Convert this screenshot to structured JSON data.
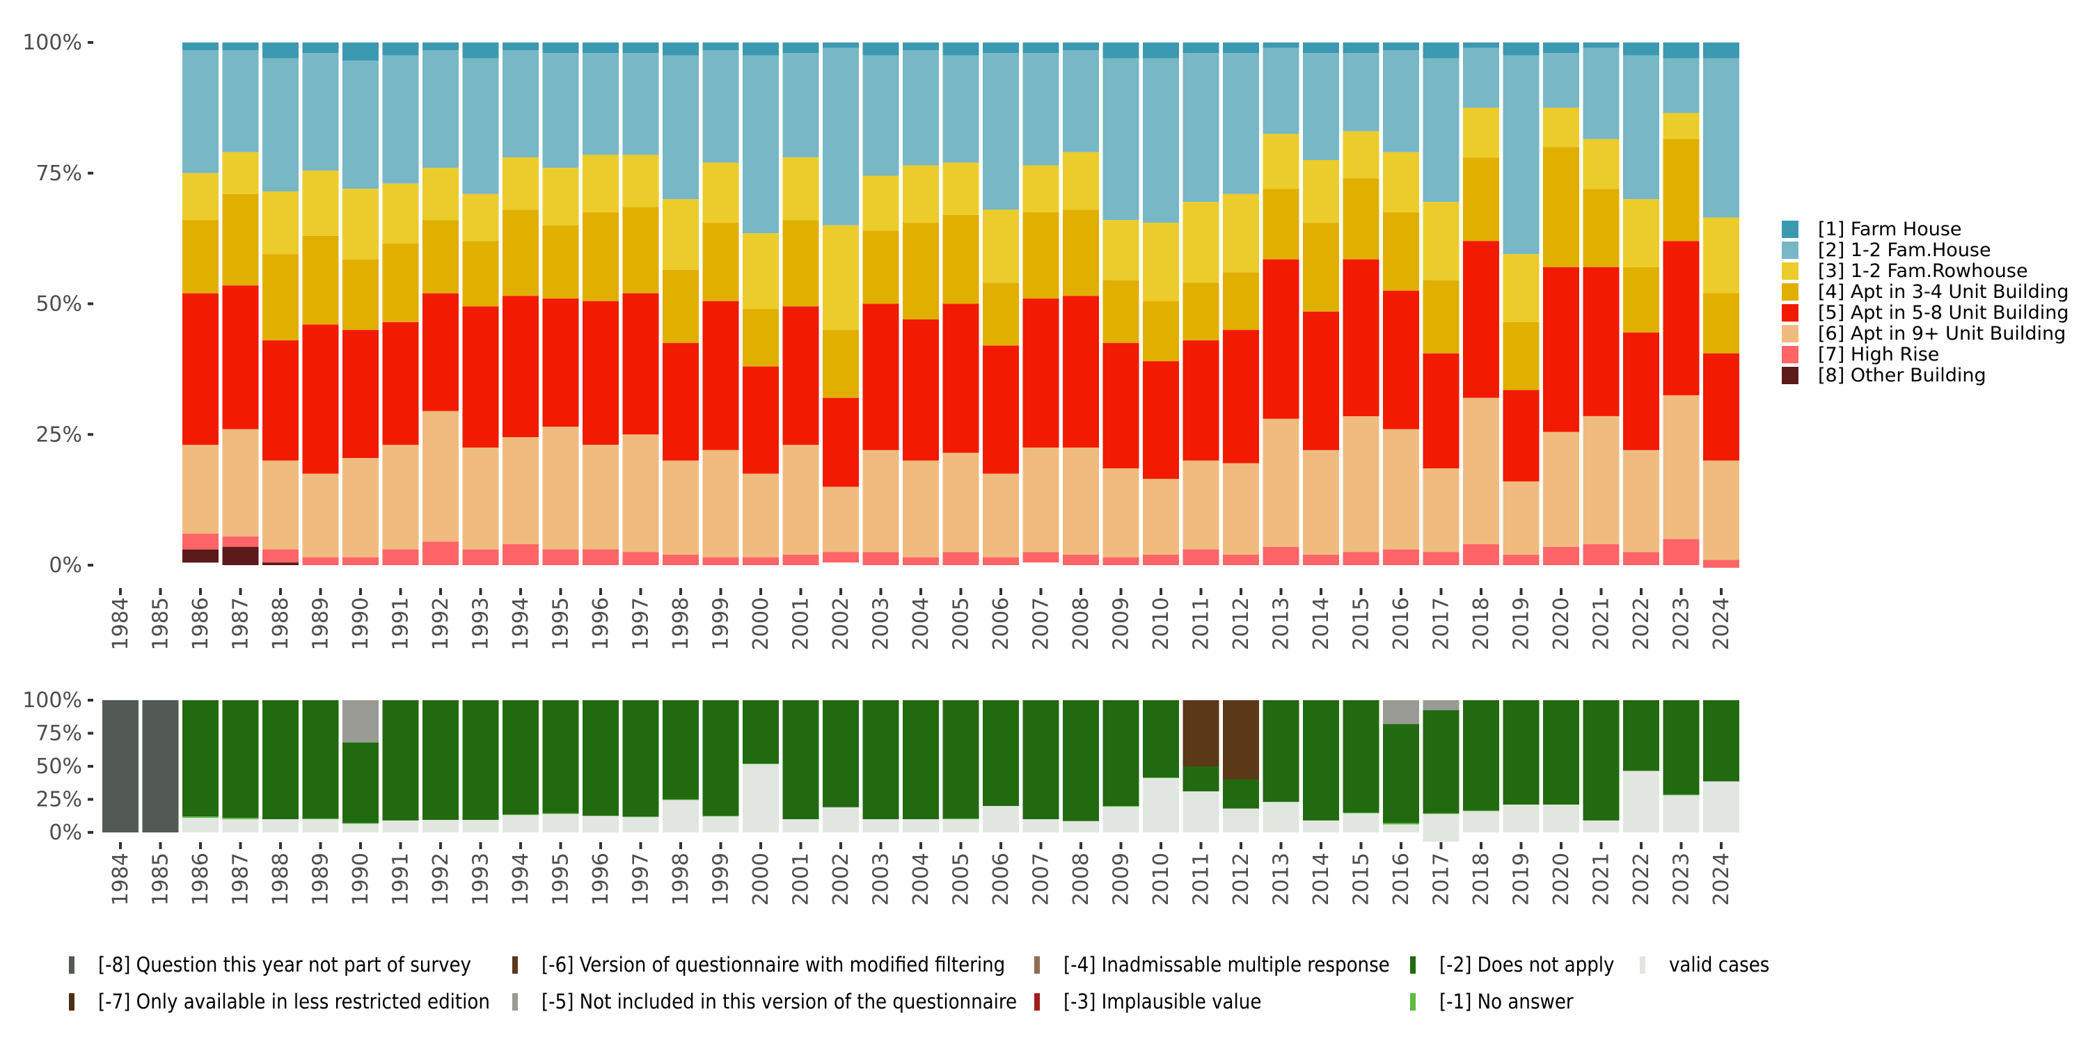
{
  "chart_data": [
    {
      "type": "bar",
      "stacked": true,
      "normalized": true,
      "title": "",
      "xlabel": "",
      "ylabel": "",
      "ylim": [
        0,
        100
      ],
      "y_ticks": [
        "0%",
        "25%",
        "50%",
        "75%",
        "100%"
      ],
      "y_tick_values": [
        0,
        25,
        50,
        75,
        100
      ],
      "grid": false,
      "legend_position": "right",
      "categories": [
        "1984",
        "1985",
        "1986",
        "1987",
        "1988",
        "1989",
        "1990",
        "1991",
        "1992",
        "1993",
        "1994",
        "1995",
        "1996",
        "1997",
        "1998",
        "1999",
        "2000",
        "2001",
        "2002",
        "2003",
        "2004",
        "2005",
        "2006",
        "2007",
        "2008",
        "2009",
        "2010",
        "2011",
        "2012",
        "2013",
        "2014",
        "2015",
        "2016",
        "2017",
        "2018",
        "2019",
        "2020",
        "2021",
        "2022",
        "2023",
        "2024"
      ],
      "series": [
        {
          "name": "[1] Farm House",
          "color": "#3c99b2",
          "values": [
            null,
            null,
            1.5,
            1.5,
            3,
            2,
            3.5,
            2.5,
            1.5,
            3,
            1.5,
            2,
            2,
            2,
            2.5,
            1.5,
            2.5,
            2,
            1,
            2.5,
            1.5,
            2.5,
            2,
            2,
            1.5,
            3,
            3,
            2,
            2,
            1,
            2,
            2,
            1.5,
            3,
            1,
            2.5,
            2,
            1,
            2.5,
            3,
            3
          ]
        },
        {
          "name": "[2] 1-2 Fam.House",
          "color": "#78b7c5",
          "values": [
            null,
            null,
            23.5,
            19.5,
            25.5,
            22.5,
            24.5,
            24.5,
            22.5,
            26,
            20.5,
            22,
            19.5,
            19.5,
            27.5,
            21.5,
            34,
            20,
            34,
            23,
            22,
            20.5,
            30,
            21.5,
            19.5,
            31,
            31.5,
            28.5,
            27,
            16.5,
            20.5,
            15,
            19.5,
            27.5,
            11.5,
            38,
            10.5,
            17.5,
            27.5,
            10.5,
            30.5
          ]
        },
        {
          "name": "[3] 1-2 Fam.Rowhouse",
          "color": "#ebcc2a",
          "values": [
            null,
            null,
            9,
            8,
            12,
            12.5,
            13.5,
            11.5,
            10,
            9,
            10,
            11,
            11,
            10,
            13.5,
            11.5,
            14.5,
            12,
            20,
            10.5,
            11,
            10,
            14,
            9,
            11,
            11.5,
            15,
            15.5,
            15,
            10.5,
            12,
            9,
            11.5,
            15,
            9.5,
            13,
            7.5,
            9.5,
            13,
            5,
            14.5
          ]
        },
        {
          "name": "[4] Apt in 3-4 Unit Building",
          "color": "#e1af00",
          "values": [
            null,
            null,
            14,
            17.5,
            16.5,
            17,
            13.5,
            15,
            14,
            12.5,
            16.5,
            14,
            17,
            16.5,
            14,
            15,
            11,
            16.5,
            13,
            14,
            18.5,
            17,
            12,
            16.5,
            16.5,
            12,
            11.5,
            11,
            11,
            13.5,
            17,
            15.5,
            15,
            14,
            16,
            13,
            23,
            15,
            12.5,
            19.5,
            11.5
          ]
        },
        {
          "name": "[5] Apt in 5-8 Unit Building",
          "color": "#f21a00",
          "values": [
            null,
            null,
            29,
            27.5,
            23,
            28.5,
            24.5,
            23.5,
            22.5,
            27,
            27,
            24.5,
            27.5,
            27,
            22.5,
            28.5,
            20.5,
            26.5,
            17,
            28,
            27,
            28.5,
            24.5,
            28.5,
            29,
            24,
            22.5,
            23,
            25.5,
            30.5,
            26.5,
            30,
            26.5,
            22,
            30,
            17.5,
            31.5,
            28.5,
            22.5,
            29.5,
            20.5
          ]
        },
        {
          "name": "[6] Apt in 9+ Unit Building",
          "color": "#f0bb7f",
          "values": [
            null,
            null,
            17,
            20.5,
            17,
            16,
            19,
            20,
            25,
            19.5,
            20.5,
            23.5,
            20,
            22.5,
            18,
            20.5,
            16,
            21,
            12.5,
            19.5,
            18.5,
            19,
            16,
            20,
            20.5,
            17,
            14.5,
            17,
            17.5,
            24.5,
            20,
            26,
            23,
            16,
            28,
            14,
            22,
            24.5,
            19.5,
            27.5,
            19
          ]
        },
        {
          "name": "[7] High Rise",
          "color": "#ff6568",
          "values": [
            null,
            null,
            3,
            2,
            2.5,
            1.5,
            1.5,
            3,
            4.5,
            3,
            4,
            3,
            3,
            2.5,
            2,
            1.5,
            1.5,
            2,
            2,
            2.5,
            1.5,
            2.5,
            1.5,
            2,
            2,
            1.5,
            2,
            3,
            2,
            3.5,
            2,
            2.5,
            3,
            2.5,
            4,
            2,
            3.5,
            4,
            2.5,
            5,
            1.5
          ]
        },
        {
          "name": "[8] Other Building",
          "color": "#5c1a1a",
          "values": [
            null,
            null,
            2.5,
            3.5,
            0.5,
            0,
            0,
            0,
            0,
            0,
            0,
            0,
            0,
            0,
            0,
            0,
            0,
            0,
            0,
            0,
            0,
            0,
            0,
            0,
            0,
            0,
            0,
            0,
            0,
            0,
            0,
            0,
            0,
            0,
            0,
            0,
            0,
            0,
            0,
            0,
            0
          ]
        }
      ]
    },
    {
      "type": "bar",
      "stacked": true,
      "normalized": true,
      "title": "",
      "xlabel": "",
      "ylabel": "",
      "ylim": [
        0,
        100
      ],
      "y_ticks": [
        "0%",
        "25%",
        "50%",
        "75%",
        "100%"
      ],
      "y_tick_values": [
        0,
        25,
        50,
        75,
        100
      ],
      "grid": false,
      "legend_position": "bottom",
      "categories": [
        "1984",
        "1985",
        "1986",
        "1987",
        "1988",
        "1989",
        "1990",
        "1991",
        "1992",
        "1993",
        "1994",
        "1995",
        "1996",
        "1997",
        "1998",
        "1999",
        "2000",
        "2001",
        "2002",
        "2003",
        "2004",
        "2005",
        "2006",
        "2007",
        "2008",
        "2009",
        "2010",
        "2011",
        "2012",
        "2013",
        "2014",
        "2015",
        "2016",
        "2017",
        "2018",
        "2019",
        "2020",
        "2021",
        "2022",
        "2023",
        "2024"
      ],
      "series": [
        {
          "name": "[-8] Question this year not part of survey",
          "color": "#535a53",
          "values": [
            100,
            100,
            0,
            0,
            0,
            0,
            0,
            0,
            0,
            0,
            0,
            0,
            0,
            0,
            0,
            0,
            0,
            0,
            0,
            0,
            0,
            0,
            0,
            0,
            0,
            0,
            0,
            0,
            0,
            0,
            0,
            0,
            0,
            0,
            0,
            0,
            0,
            0,
            0,
            0,
            0
          ]
        },
        {
          "name": "[-7] Only available in less restricted edition",
          "color": "#4d2f17",
          "values": [
            0,
            0,
            0,
            0,
            0,
            0,
            0,
            0,
            0,
            0,
            0,
            0,
            0,
            0,
            0,
            0,
            0,
            0,
            0,
            0,
            0,
            0,
            0,
            0,
            0,
            0,
            0,
            0,
            0,
            0,
            0,
            0,
            0,
            0,
            0,
            0,
            0,
            0,
            0,
            0,
            0
          ]
        },
        {
          "name": "[-6] Version of questionnaire with modified filtering",
          "color": "#5b3919",
          "values": [
            0,
            0,
            0,
            0,
            0,
            0,
            0,
            0,
            0,
            0,
            0,
            0,
            0,
            0,
            0,
            0,
            0,
            0,
            0,
            0,
            0,
            0,
            0,
            0,
            0,
            0,
            0,
            50,
            60,
            0,
            0,
            0,
            0,
            0,
            0,
            0,
            0,
            0,
            0,
            0,
            0
          ]
        },
        {
          "name": "[-5] Not included in this version of the questionnaire",
          "color": "#999b94",
          "values": [
            0,
            0,
            0,
            0,
            0,
            0,
            32,
            0,
            0,
            0,
            0,
            0,
            0,
            0,
            0,
            0,
            0,
            0,
            0,
            0,
            0,
            0,
            0,
            0,
            0,
            0,
            0,
            0,
            0,
            0,
            0,
            0,
            18,
            7.5,
            0,
            0,
            0,
            0,
            0,
            0,
            0
          ]
        },
        {
          "name": "[-4] Inadmissable multiple response",
          "color": "#8f6e4f",
          "values": [
            0,
            0,
            0,
            0,
            0,
            0,
            0,
            0,
            0,
            0,
            0,
            0,
            0,
            0,
            0,
            0,
            0,
            0,
            0,
            0,
            0,
            0,
            0,
            0,
            0,
            0,
            0,
            0,
            0,
            0,
            0,
            0,
            0,
            0,
            0,
            0,
            0,
            0,
            0,
            0,
            0
          ]
        },
        {
          "name": "[-3] Implausible value",
          "color": "#a51c1c",
          "values": [
            0,
            0,
            0,
            0,
            0,
            0,
            0,
            0,
            0,
            0,
            0,
            0,
            0,
            0,
            0,
            0,
            0,
            0,
            0,
            0,
            0,
            0,
            0,
            0,
            0,
            0,
            0,
            0,
            0,
            0,
            0,
            0,
            0,
            0,
            0,
            0,
            0,
            0,
            0,
            0,
            0
          ]
        },
        {
          "name": "[-2] Does not apply",
          "color": "#226a10",
          "values": [
            0,
            0,
            88,
            89,
            90,
            89.5,
            61,
            91,
            90.5,
            90.5,
            86.5,
            85.5,
            87.5,
            88,
            75,
            87.5,
            48,
            90,
            81,
            90,
            90,
            89.5,
            80,
            90,
            91.5,
            80,
            58.5,
            19,
            22,
            77,
            91,
            85,
            75,
            78,
            83.5,
            79,
            79,
            91,
            53.5,
            71.5,
            61.5
          ]
        },
        {
          "name": "[-1] No answer",
          "color": "#5bbd41",
          "values": [
            0,
            0,
            1,
            1,
            0,
            0.5,
            0.5,
            0,
            0,
            0,
            0.5,
            0.5,
            0,
            0.5,
            0.5,
            0.5,
            0.5,
            0,
            0,
            0,
            0,
            0.5,
            0,
            0,
            0,
            0.5,
            0.5,
            0,
            0,
            0,
            0,
            0.5,
            1,
            0.5,
            0.5,
            0,
            0,
            0,
            0,
            0.5,
            0
          ]
        },
        {
          "name": "valid cases",
          "color": "#e1e6e0",
          "values": [
            0,
            0,
            11,
            10,
            10,
            10,
            6.5,
            9,
            9.5,
            9.5,
            13,
            14,
            12.5,
            11.5,
            24.5,
            12,
            51.5,
            10,
            19,
            10,
            10,
            10,
            20,
            10,
            8.5,
            19.5,
            41,
            31,
            18,
            23,
            9,
            14.5,
            6,
            21,
            16,
            21,
            21,
            9,
            46.5,
            28,
            38.5
          ]
        }
      ]
    }
  ],
  "legend_top": [
    {
      "label": "[1] Farm House",
      "color": "#3c99b2"
    },
    {
      "label": "[2] 1-2 Fam.House",
      "color": "#78b7c5"
    },
    {
      "label": "[3] 1-2 Fam.Rowhouse",
      "color": "#ebcc2a"
    },
    {
      "label": "[4] Apt in 3-4 Unit Building",
      "color": "#e1af00"
    },
    {
      "label": "[5] Apt in 5-8 Unit Building",
      "color": "#f21a00"
    },
    {
      "label": "[6] Apt in 9+ Unit Building",
      "color": "#f0bb7f"
    },
    {
      "label": "[7] High Rise",
      "color": "#ff6568"
    },
    {
      "label": "[8] Other Building",
      "color": "#5c1a1a"
    }
  ],
  "legend_bottom": [
    {
      "label": "[-8] Question this year not part of survey",
      "color": "#535a53"
    },
    {
      "label": "[-7] Only available in less restricted edition",
      "color": "#4d2f17"
    },
    {
      "label": "[-6] Version of questionnaire with modified filtering",
      "color": "#5b3919"
    },
    {
      "label": "[-5] Not included in this version of the questionnaire",
      "color": "#999b94"
    },
    {
      "label": "[-4] Inadmissable multiple response",
      "color": "#8f6e4f"
    },
    {
      "label": "[-3] Implausible value",
      "color": "#a51c1c"
    },
    {
      "label": "[-2] Does not apply",
      "color": "#226a10"
    },
    {
      "label": "[-1] No answer",
      "color": "#5bbd41"
    },
    {
      "label": "valid cases",
      "color": "#e1e6e0"
    }
  ]
}
